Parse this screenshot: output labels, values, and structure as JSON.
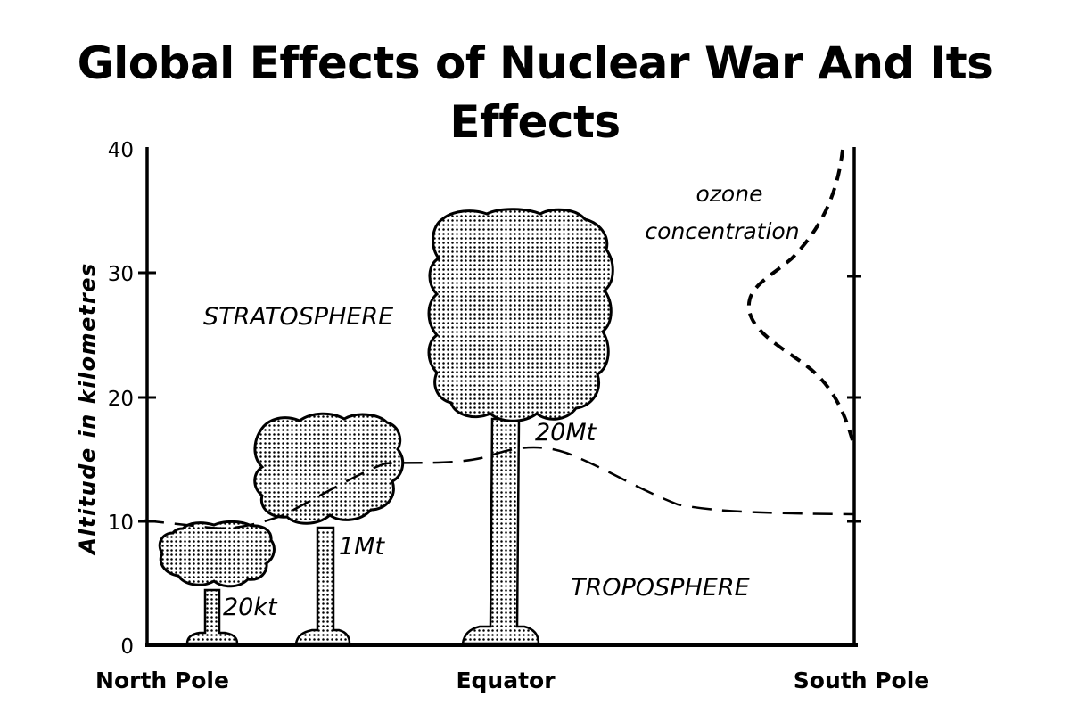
{
  "title": {
    "line1": "Global Effects of Nuclear War And Its",
    "line2": "Effects"
  },
  "y_axis": {
    "label": "Altitude in kilometres",
    "ticks": [
      "0",
      "10",
      "20",
      "30",
      "40"
    ],
    "range": [
      0,
      40
    ]
  },
  "x_axis": {
    "positions": [
      "North Pole",
      "Equator",
      "South Pole"
    ]
  },
  "regions": {
    "stratosphere": "STRATOSPHERE",
    "troposphere": "TROPOSPHERE"
  },
  "clouds": [
    {
      "label": "20kt",
      "top_km": 9.5
    },
    {
      "label": "1Mt",
      "top_km": 18.2
    },
    {
      "label": "20Mt",
      "top_km": 35.3
    }
  ],
  "tropopause_profile_km": [
    10,
    9.6,
    12,
    14.6,
    14.7,
    15.9,
    15.3,
    12.3,
    10.8,
    10.6
  ],
  "ozone": {
    "label_line1": "ozone",
    "label_line2": "concentration",
    "peak_altitude_km": 27
  },
  "colors": {
    "ink": "#000000",
    "background": "#ffffff"
  }
}
